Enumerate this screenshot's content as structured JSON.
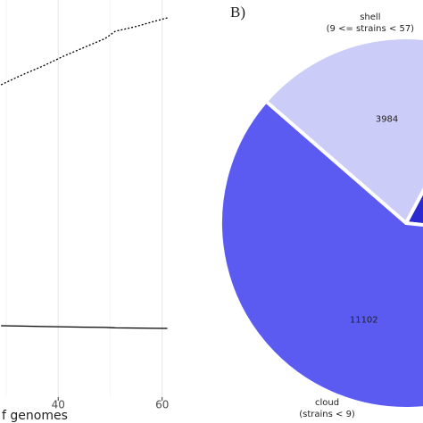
{
  "charts": [
    {
      "type": "line",
      "x_label": "f genomes",
      "x": [
        29,
        33,
        37,
        41,
        45,
        49,
        51,
        55,
        58,
        61
      ],
      "series": [
        {
          "color": "#000000",
          "dash": "dotted",
          "values": [
            14157,
            14600,
            15000,
            15450,
            15850,
            16250,
            16584,
            16800,
            17000,
            17191
          ]
        },
        {
          "color": "#000000",
          "dash": "solid",
          "values": [
            3236,
            3220,
            3200,
            3185,
            3170,
            3160,
            3140,
            3130,
            3120,
            3115
          ]
        }
      ],
      "xlim": [
        28.8,
        64
      ],
      "ylim": [
        0,
        18000
      ],
      "xticks": [
        40,
        60
      ],
      "x_minor_ticks": [
        30,
        50
      ],
      "grid": true
    },
    {
      "type": "pie",
      "panel_label": "B)",
      "categories": [
        [
          "shell",
          "(9 <= strains < 57)"
        ],
        null,
        [
          "cloud",
          "(strains < 9)"
        ]
      ],
      "values": [
        3984,
        3500,
        11102
      ],
      "value_labels": [
        "3984",
        null,
        "11102"
      ],
      "colors": [
        "#ccccf8",
        "#2a2ad0",
        "#5b5bf2"
      ]
    }
  ]
}
